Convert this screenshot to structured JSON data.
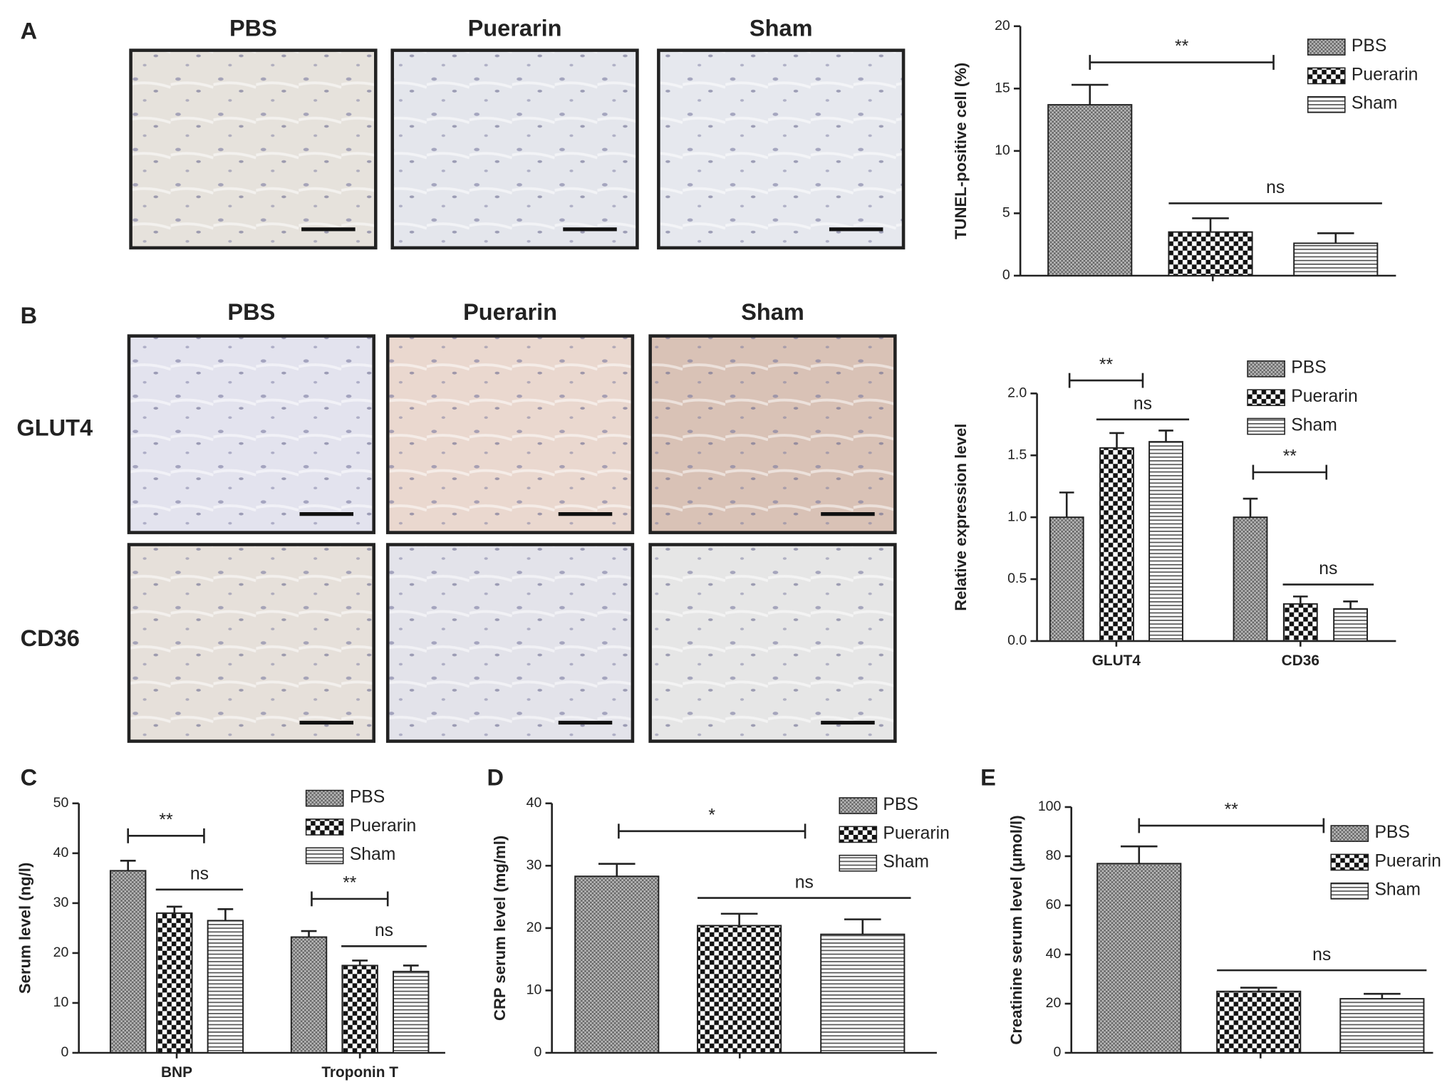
{
  "panel_labels": [
    "A",
    "B",
    "C",
    "D",
    "E"
  ],
  "micrographs": {
    "A": {
      "columns": [
        "PBS",
        "Puerarin",
        "Sham"
      ]
    },
    "B": {
      "columns": [
        "PBS",
        "Puerarin",
        "Sham"
      ],
      "rows": [
        "GLUT4",
        "CD36"
      ]
    }
  },
  "chart_data": [
    {
      "type": "bar",
      "ylabel": "TUNEL-positive cell (%)",
      "categories": [
        null
      ],
      "series": [
        {
          "name": "PBS",
          "pattern": "fine-check",
          "values": [
            13.7
          ],
          "errors": [
            1.6
          ]
        },
        {
          "name": "Puerarin",
          "pattern": "check",
          "values": [
            3.5
          ],
          "errors": [
            1.1
          ]
        },
        {
          "name": "Sham",
          "pattern": "stripes",
          "values": [
            2.6
          ],
          "errors": [
            0.8
          ]
        }
      ],
      "ylim": [
        0,
        20
      ],
      "yticks": [
        0,
        5,
        10,
        15,
        20
      ],
      "annotations": [
        {
          "text": "**"
        },
        {
          "text": "ns"
        }
      ]
    },
    {
      "type": "bar",
      "ylabel": "Relative expression level",
      "categories": [
        "GLUT4",
        "CD36"
      ],
      "series": [
        {
          "name": "PBS",
          "pattern": "fine-check",
          "values": [
            1.0,
            1.0
          ],
          "errors": [
            0.2,
            0.15
          ]
        },
        {
          "name": "Puerarin",
          "pattern": "check",
          "values": [
            1.56,
            0.3
          ],
          "errors": [
            0.12,
            0.06
          ]
        },
        {
          "name": "Sham",
          "pattern": "stripes",
          "values": [
            1.61,
            0.26
          ],
          "errors": [
            0.09,
            0.06
          ]
        }
      ],
      "ylim": [
        0,
        2
      ],
      "yticks": [
        {
          "value": 0,
          "label": "0.0"
        },
        {
          "value": 0.5,
          "label": "0.5"
        },
        {
          "value": 1,
          "label": "1.0"
        },
        {
          "value": 1.5,
          "label": "1.5"
        },
        {
          "value": 2,
          "label": "2.0"
        }
      ],
      "annotations": [
        {
          "text": "**"
        },
        {
          "text": "ns"
        },
        {
          "text": "**"
        },
        {
          "text": "ns"
        }
      ]
    },
    {
      "type": "bar",
      "ylabel": "Serum level (ng/l)",
      "categories": [
        "BNP",
        "Troponin T"
      ],
      "series": [
        {
          "name": "PBS",
          "pattern": "fine-check",
          "values": [
            36.5,
            23.2
          ],
          "errors": [
            2.0,
            1.2
          ]
        },
        {
          "name": "Puerarin",
          "pattern": "check",
          "values": [
            28,
            17.5
          ],
          "errors": [
            1.3,
            1.0
          ]
        },
        {
          "name": "Sham",
          "pattern": "stripes",
          "values": [
            26.5,
            16.3
          ],
          "errors": [
            2.3,
            1.2
          ]
        }
      ],
      "ylim": [
        0,
        50
      ],
      "yticks": [
        0,
        10,
        20,
        30,
        40,
        50
      ],
      "annotations": [
        {
          "text": "**"
        },
        {
          "text": "ns"
        },
        {
          "text": "**"
        },
        {
          "text": "ns"
        }
      ]
    },
    {
      "type": "bar",
      "ylabel": "CRP serum level (mg/ml)",
      "categories": [
        null
      ],
      "series": [
        {
          "name": "PBS",
          "pattern": "fine-check",
          "values": [
            28.3
          ],
          "errors": [
            2.0
          ]
        },
        {
          "name": "Puerarin",
          "pattern": "check",
          "values": [
            20.4
          ],
          "errors": [
            1.9
          ]
        },
        {
          "name": "Sham",
          "pattern": "stripes",
          "values": [
            19
          ],
          "errors": [
            2.4
          ]
        }
      ],
      "ylim": [
        0,
        40
      ],
      "yticks": [
        0,
        10,
        20,
        30,
        40
      ],
      "annotations": [
        {
          "text": "*"
        },
        {
          "text": "ns"
        }
      ]
    },
    {
      "type": "bar",
      "ylabel": "Creatinine serum level (μmol/l)",
      "categories": [
        null
      ],
      "series": [
        {
          "name": "PBS",
          "pattern": "fine-check",
          "values": [
            77
          ],
          "errors": [
            7
          ]
        },
        {
          "name": "Puerarin",
          "pattern": "check",
          "values": [
            25
          ],
          "errors": [
            1.5
          ]
        },
        {
          "name": "Sham",
          "pattern": "stripes",
          "values": [
            22
          ],
          "errors": [
            2
          ]
        }
      ],
      "ylim": [
        0,
        100
      ],
      "yticks": [
        0,
        20,
        40,
        60,
        80,
        100
      ],
      "annotations": [
        {
          "text": "**"
        },
        {
          "text": "ns"
        }
      ]
    }
  ]
}
